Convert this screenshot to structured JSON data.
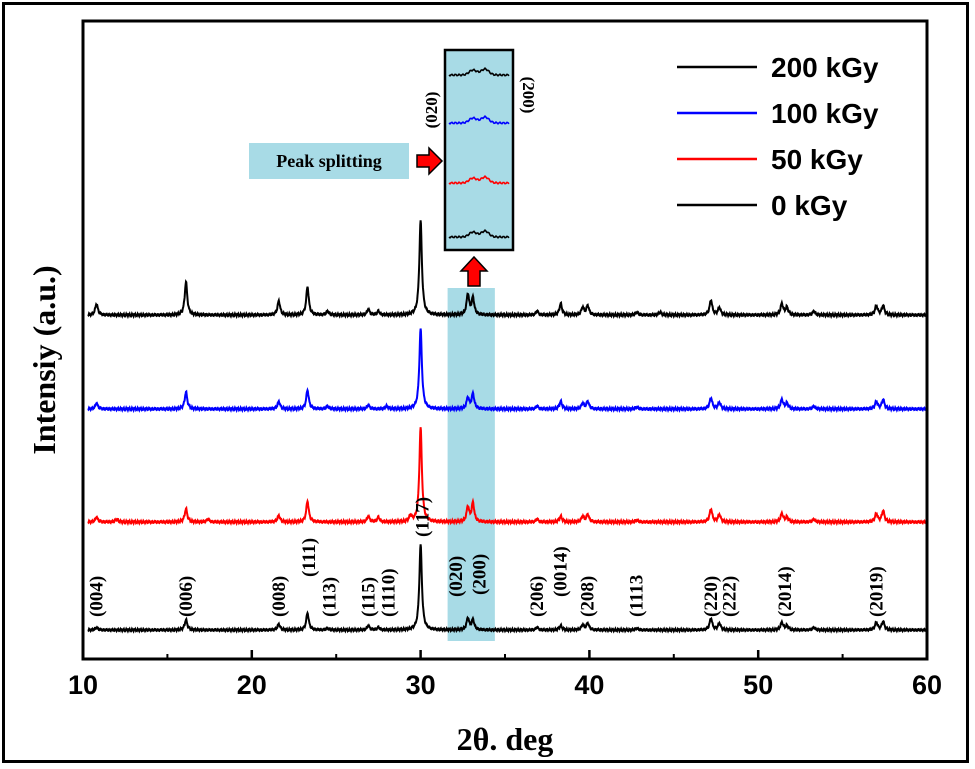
{
  "chart_data": {
    "type": "line",
    "title": "",
    "xlabel": "2θ. deg",
    "ylabel": "Intensiy (a.u.)",
    "xlim": [
      10,
      60
    ],
    "x_ticks": [
      10,
      20,
      30,
      40,
      50,
      60
    ],
    "x_tick_labels": [
      "10",
      "20",
      "30",
      "40",
      "50",
      "60"
    ],
    "y_ticks_shown": false,
    "grid": false,
    "legend_position": "top-right",
    "series": [
      {
        "name": "200 kGy",
        "color": "#000000",
        "offset": 3.0,
        "peaks": [
          [
            10.8,
            0.12
          ],
          [
            16.1,
            0.35
          ],
          [
            21.6,
            0.15
          ],
          [
            23.3,
            0.3
          ],
          [
            24.5,
            0.04
          ],
          [
            26.9,
            0.06
          ],
          [
            27.5,
            0.04
          ],
          [
            30.0,
            1.0
          ],
          [
            32.8,
            0.22
          ],
          [
            33.1,
            0.18
          ],
          [
            36.9,
            0.04
          ],
          [
            38.3,
            0.12
          ],
          [
            39.6,
            0.08
          ],
          [
            39.9,
            0.1
          ],
          [
            42.8,
            0.03
          ],
          [
            44.2,
            0.03
          ],
          [
            47.2,
            0.16
          ],
          [
            47.7,
            0.08
          ],
          [
            51.4,
            0.12
          ],
          [
            51.7,
            0.08
          ],
          [
            53.3,
            0.04
          ],
          [
            57.0,
            0.1
          ],
          [
            57.4,
            0.1
          ]
        ]
      },
      {
        "name": "100 kGy",
        "color": "#0000ff",
        "offset": 2.0,
        "peaks": [
          [
            10.8,
            0.06
          ],
          [
            16.1,
            0.18
          ],
          [
            21.6,
            0.08
          ],
          [
            23.3,
            0.2
          ],
          [
            24.5,
            0.03
          ],
          [
            26.9,
            0.04
          ],
          [
            28.0,
            0.03
          ],
          [
            30.0,
            0.85
          ],
          [
            32.8,
            0.12
          ],
          [
            33.1,
            0.16
          ],
          [
            36.9,
            0.03
          ],
          [
            38.3,
            0.08
          ],
          [
            39.6,
            0.06
          ],
          [
            39.9,
            0.08
          ],
          [
            42.8,
            0.02
          ],
          [
            47.2,
            0.12
          ],
          [
            47.7,
            0.07
          ],
          [
            51.4,
            0.1
          ],
          [
            51.7,
            0.06
          ],
          [
            53.3,
            0.03
          ],
          [
            57.0,
            0.08
          ],
          [
            57.4,
            0.1
          ]
        ]
      },
      {
        "name": "50 kGy",
        "color": "#ff0000",
        "offset": 1.0,
        "peaks": [
          [
            10.8,
            0.05
          ],
          [
            12.0,
            0.03
          ],
          [
            16.1,
            0.14
          ],
          [
            17.4,
            0.03
          ],
          [
            21.6,
            0.07
          ],
          [
            23.3,
            0.22
          ],
          [
            26.9,
            0.06
          ],
          [
            27.5,
            0.05
          ],
          [
            29.4,
            0.06
          ],
          [
            30.0,
            1.0
          ],
          [
            32.8,
            0.16
          ],
          [
            33.1,
            0.2
          ],
          [
            36.9,
            0.03
          ],
          [
            38.3,
            0.06
          ],
          [
            39.6,
            0.06
          ],
          [
            39.9,
            0.08
          ],
          [
            42.8,
            0.02
          ],
          [
            47.2,
            0.14
          ],
          [
            47.7,
            0.08
          ],
          [
            51.4,
            0.09
          ],
          [
            51.7,
            0.05
          ],
          [
            53.3,
            0.03
          ],
          [
            57.0,
            0.09
          ],
          [
            57.4,
            0.12
          ]
        ]
      },
      {
        "name": "0 kGy",
        "color": "#000000",
        "offset": 0.0,
        "peaks": [
          [
            10.8,
            0.03
          ],
          [
            16.1,
            0.12
          ],
          [
            21.6,
            0.07
          ],
          [
            23.3,
            0.2
          ],
          [
            24.5,
            0.02
          ],
          [
            26.9,
            0.05
          ],
          [
            27.5,
            0.03
          ],
          [
            30.0,
            1.0
          ],
          [
            32.8,
            0.14
          ],
          [
            33.1,
            0.12
          ],
          [
            36.9,
            0.03
          ],
          [
            38.3,
            0.05
          ],
          [
            39.6,
            0.06
          ],
          [
            39.9,
            0.08
          ],
          [
            42.8,
            0.02
          ],
          [
            47.2,
            0.14
          ],
          [
            47.7,
            0.08
          ],
          [
            51.4,
            0.09
          ],
          [
            51.7,
            0.05
          ],
          [
            53.3,
            0.03
          ],
          [
            57.0,
            0.09
          ],
          [
            57.4,
            0.1
          ]
        ]
      }
    ],
    "peak_labels": [
      {
        "text": "(004)",
        "x": 10.8
      },
      {
        "text": "(006)",
        "x": 16.1
      },
      {
        "text": "(008)",
        "x": 21.6
      },
      {
        "text": "(111)",
        "x": 23.4
      },
      {
        "text": "(113)",
        "x": 24.6
      },
      {
        "text": "(115)",
        "x": 26.9
      },
      {
        "text": "(1110)",
        "x": 28.1
      },
      {
        "text": "(117)",
        "x": 30.1
      },
      {
        "text": "(020)",
        "x": 32.1
      },
      {
        "text": "(200)",
        "x": 33.5
      },
      {
        "text": "(206)",
        "x": 36.9
      },
      {
        "text": "(0014)",
        "x": 38.3
      },
      {
        "text": "(208)",
        "x": 39.9
      },
      {
        "text": "(1113",
        "x": 42.8
      },
      {
        "text": "(220)",
        "x": 47.2
      },
      {
        "text": "(222)",
        "x": 48.3
      },
      {
        "text": "(2014)",
        "x": 51.6
      },
      {
        "text": "(2019)",
        "x": 57.0
      }
    ],
    "highlight_region": {
      "x_start": 31.6,
      "x_end": 34.4,
      "color": "#a8dbe6"
    },
    "inset": {
      "left_label": "(020)",
      "right_label": "(200)",
      "background": "#a8dbe6",
      "description_order": [
        "200 kGy",
        "100 kGy",
        "50 kGy",
        "0 kGy"
      ]
    },
    "annotation": {
      "text": "Peak splitting",
      "background": "#a8dbe6",
      "arrow_color": "#ff0000"
    }
  }
}
